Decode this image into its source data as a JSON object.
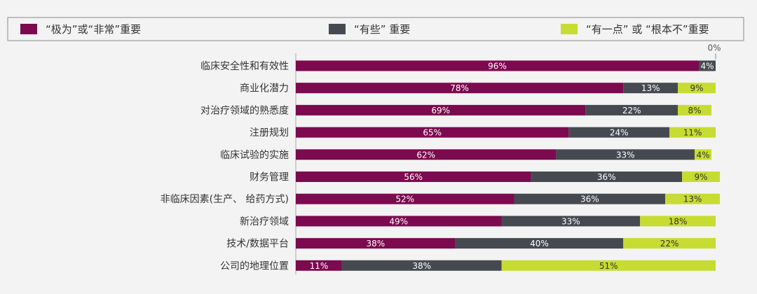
{
  "chart_data": {
    "type": "bar",
    "orientation": "horizontal",
    "stacked": true,
    "title": "",
    "xlabel": "",
    "ylabel": "",
    "xlim": [
      0,
      100
    ],
    "legend_position": "top",
    "grid": false,
    "categories": [
      "临床安全性和有效性",
      "商业化潜力",
      "对治疗领域的熟悉度",
      "注册规划",
      "临床试验的实施",
      "财务管理",
      "非临床因素(生产、 给药方式)",
      "新治疗领域",
      "技术/数据平台",
      "公司的地理位置"
    ],
    "series": [
      {
        "name": "“极为”或“非常”重要",
        "color": "#7c0a4f",
        "values": [
          96,
          78,
          69,
          65,
          62,
          56,
          52,
          49,
          38,
          11
        ]
      },
      {
        "name": "“有些” 重要",
        "color": "#464a50",
        "values": [
          4,
          13,
          22,
          24,
          33,
          36,
          36,
          33,
          40,
          38
        ]
      },
      {
        "name": "“有一点” 或 “根本不”重要",
        "color": "#c6dc32",
        "values": [
          0,
          9,
          8,
          11,
          4,
          9,
          13,
          18,
          22,
          51
        ]
      }
    ],
    "annotations": [
      {
        "category": "临床安全性和有效性",
        "series": "“有一点” 或 “根本不”重要",
        "text": "0%"
      }
    ]
  }
}
